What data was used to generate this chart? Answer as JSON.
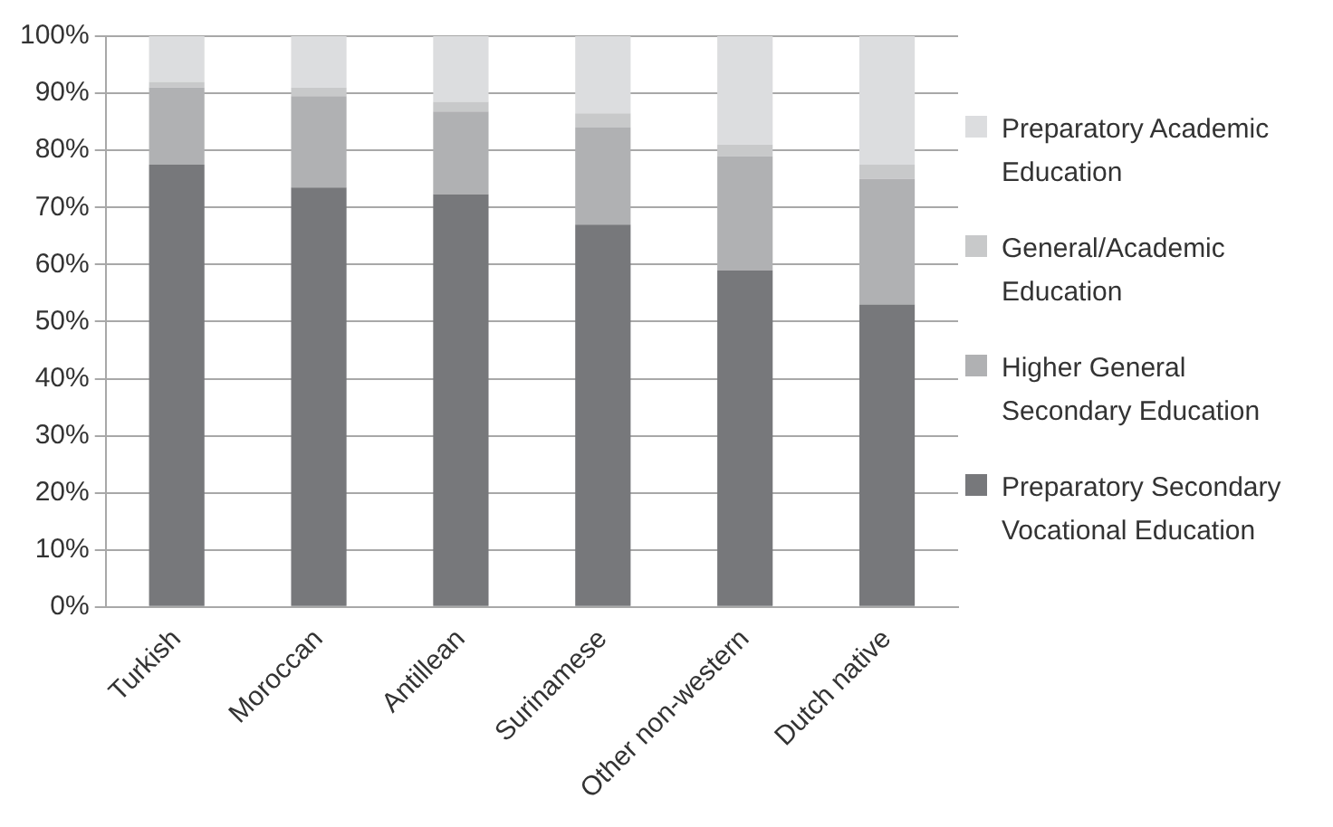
{
  "chart_data": {
    "type": "bar",
    "stacked": true,
    "categories": [
      "Turkish",
      "Moroccan",
      "Antillean",
      "Surinamese",
      "Other non-western",
      "Dutch native"
    ],
    "series": [
      {
        "name": "Preparatory Secondary Vocational Education",
        "color": "#77787b",
        "values": [
          77.5,
          73.5,
          72.3,
          67,
          59,
          53
        ]
      },
      {
        "name": "Higher General Secondary Education",
        "color": "#b0b1b3",
        "values": [
          13.5,
          16,
          14.5,
          17,
          20,
          22
        ]
      },
      {
        "name": "General/Academic Education",
        "color": "#c8c9ca",
        "values": [
          1,
          1.5,
          1.7,
          2.5,
          2,
          2.5
        ]
      },
      {
        "name": "Preparatory Academic Education",
        "color": "#dcdddf",
        "values": [
          8,
          9,
          11.5,
          13.5,
          19,
          22.5
        ]
      }
    ],
    "ylim": [
      0,
      100
    ],
    "yticks": [
      {
        "value": 0,
        "label": "0%"
      },
      {
        "value": 10,
        "label": "10%"
      },
      {
        "value": 20,
        "label": "20%"
      },
      {
        "value": 30,
        "label": "30%"
      },
      {
        "value": 40,
        "label": "40%"
      },
      {
        "value": 50,
        "label": "50%"
      },
      {
        "value": 60,
        "label": "60%"
      },
      {
        "value": 70,
        "label": "70%"
      },
      {
        "value": 80,
        "label": "80%"
      },
      {
        "value": 90,
        "label": "90%"
      },
      {
        "value": 100,
        "label": "100%"
      }
    ],
    "grid": "y",
    "legend": "right"
  }
}
